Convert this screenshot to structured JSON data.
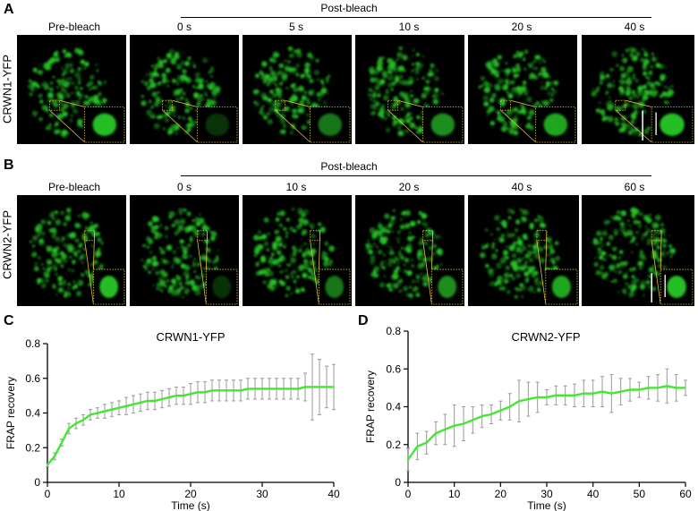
{
  "panels": {
    "A": {
      "letter": "A",
      "row_label": "CRWN1-YFP",
      "post_label": "Post-bleach",
      "frames": [
        "Pre-bleach",
        "0 s",
        "5 s",
        "10 s",
        "20 s",
        "40 s"
      ]
    },
    "B": {
      "letter": "B",
      "row_label": "CRWN2-YFP",
      "post_label": "Post-bleach",
      "frames": [
        "Pre-bleach",
        "0 s",
        "10 s",
        "20 s",
        "40 s",
        "60 s"
      ]
    },
    "C": {
      "letter": "C"
    },
    "D": {
      "letter": "D"
    }
  },
  "colors": {
    "line": "#44e632",
    "error": "#9a9a9a",
    "fluor": "#28c828",
    "inset": "#e0c040"
  },
  "chart_data": [
    {
      "type": "line",
      "title": "CRWN1-YFP",
      "xlabel": "Time (s)",
      "ylabel": "FRAP recovery",
      "xlim": [
        0,
        40
      ],
      "ylim": [
        0,
        0.8
      ],
      "xticks": [
        0,
        10,
        20,
        30,
        40
      ],
      "yticks": [
        0,
        0.2,
        0.4,
        0.6,
        0.8
      ],
      "series": [
        {
          "name": "CRWN1-YFP",
          "x": [
            0,
            1,
            2,
            3,
            4,
            5,
            6,
            7,
            8,
            9,
            10,
            11,
            12,
            13,
            14,
            15,
            16,
            17,
            18,
            19,
            20,
            21,
            22,
            23,
            24,
            25,
            26,
            27,
            28,
            29,
            30,
            31,
            32,
            33,
            34,
            35,
            36,
            37,
            38,
            39,
            40
          ],
          "y": [
            0.1,
            0.15,
            0.23,
            0.31,
            0.34,
            0.36,
            0.39,
            0.4,
            0.41,
            0.42,
            0.43,
            0.44,
            0.45,
            0.46,
            0.47,
            0.47,
            0.48,
            0.49,
            0.5,
            0.5,
            0.51,
            0.52,
            0.52,
            0.53,
            0.53,
            0.53,
            0.53,
            0.53,
            0.54,
            0.54,
            0.54,
            0.54,
            0.54,
            0.54,
            0.54,
            0.54,
            0.55,
            0.55,
            0.55,
            0.55,
            0.55
          ],
          "err": [
            0.01,
            0.02,
            0.02,
            0.03,
            0.03,
            0.03,
            0.03,
            0.03,
            0.04,
            0.04,
            0.04,
            0.05,
            0.05,
            0.05,
            0.05,
            0.05,
            0.05,
            0.05,
            0.05,
            0.05,
            0.06,
            0.06,
            0.06,
            0.06,
            0.06,
            0.06,
            0.06,
            0.06,
            0.06,
            0.06,
            0.06,
            0.06,
            0.06,
            0.06,
            0.06,
            0.06,
            0.08,
            0.19,
            0.16,
            0.12,
            0.13
          ]
        }
      ]
    },
    {
      "type": "line",
      "title": "CRWN2-YFP",
      "xlabel": "Time (s)",
      "ylabel": "FRAP recovery",
      "xlim": [
        0,
        60
      ],
      "ylim": [
        0,
        0.8
      ],
      "xticks": [
        0,
        10,
        20,
        30,
        40,
        50,
        60
      ],
      "yticks": [
        0,
        0.2,
        0.4,
        0.6,
        0.8
      ],
      "series": [
        {
          "name": "CRWN2-YFP",
          "x": [
            0,
            2,
            4,
            6,
            8,
            10,
            12,
            14,
            16,
            18,
            20,
            22,
            24,
            26,
            28,
            30,
            32,
            34,
            36,
            38,
            40,
            42,
            44,
            46,
            48,
            50,
            52,
            54,
            56,
            58,
            60
          ],
          "y": [
            0.12,
            0.19,
            0.21,
            0.26,
            0.28,
            0.3,
            0.31,
            0.33,
            0.35,
            0.36,
            0.38,
            0.4,
            0.43,
            0.44,
            0.45,
            0.45,
            0.46,
            0.46,
            0.46,
            0.47,
            0.47,
            0.48,
            0.47,
            0.48,
            0.49,
            0.49,
            0.5,
            0.5,
            0.51,
            0.5,
            0.5
          ],
          "err": [
            0.06,
            0.07,
            0.06,
            0.06,
            0.08,
            0.11,
            0.09,
            0.07,
            0.06,
            0.05,
            0.05,
            0.07,
            0.11,
            0.09,
            0.08,
            0.04,
            0.05,
            0.05,
            0.06,
            0.07,
            0.07,
            0.08,
            0.1,
            0.07,
            0.06,
            0.04,
            0.06,
            0.07,
            0.09,
            0.07,
            0.04
          ]
        }
      ]
    }
  ]
}
